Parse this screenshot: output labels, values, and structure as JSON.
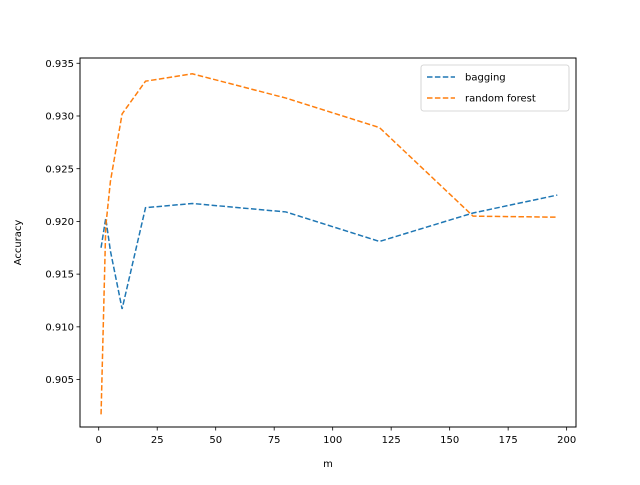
{
  "chart_data": {
    "type": "line",
    "xlabel": "m",
    "ylabel": "Accuracy",
    "xlim": [
      -8,
      204
    ],
    "ylim": [
      0.9005,
      0.9355
    ],
    "xticks": [
      0,
      25,
      50,
      75,
      100,
      125,
      150,
      175,
      200
    ],
    "yticks": [
      0.905,
      0.91,
      0.915,
      0.92,
      0.925,
      0.93,
      0.935
    ],
    "xtick_labels": [
      "0",
      "25",
      "50",
      "75",
      "100",
      "125",
      "150",
      "175",
      "200"
    ],
    "ytick_labels": [
      "0.905",
      "0.910",
      "0.915",
      "0.920",
      "0.925",
      "0.930",
      "0.935"
    ],
    "grid": false,
    "legend_position": "top-right",
    "series": [
      {
        "name": "bagging",
        "color": "#1f77b4",
        "linestyle": "dashed",
        "x": [
          1,
          3,
          5,
          10,
          20,
          40,
          80,
          120,
          160,
          196
        ],
        "y": [
          0.9175,
          0.9203,
          0.9172,
          0.9117,
          0.9213,
          0.9217,
          0.9209,
          0.9181,
          0.9208,
          0.9225
        ]
      },
      {
        "name": "random forest",
        "color": "#ff7f0e",
        "linestyle": "dashed",
        "x": [
          1,
          3,
          5,
          10,
          20,
          40,
          80,
          120,
          160,
          196
        ],
        "y": [
          0.9017,
          0.9195,
          0.9238,
          0.9302,
          0.9333,
          0.934,
          0.9317,
          0.9289,
          0.9205,
          0.9204
        ]
      }
    ]
  }
}
